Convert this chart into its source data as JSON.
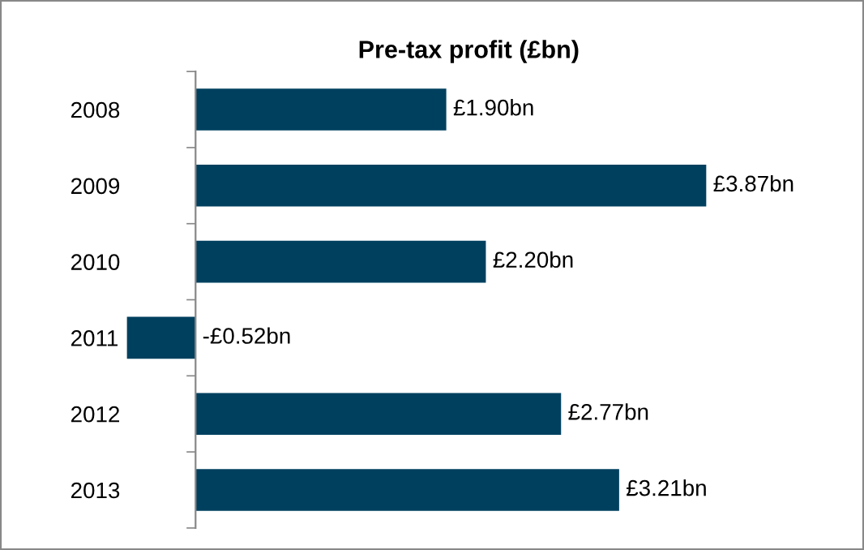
{
  "chart_data": {
    "type": "bar",
    "orientation": "horizontal",
    "title": "Pre-tax profit (£bn)",
    "categories": [
      "2008",
      "2009",
      "2010",
      "2011",
      "2012",
      "2013"
    ],
    "values": [
      1.9,
      3.87,
      2.2,
      -0.52,
      2.77,
      3.21
    ],
    "value_labels": [
      "£1.90bn",
      "£3.87bn",
      "£2.20bn",
      "-£0.52bn",
      "£2.77bn",
      "£3.21bn"
    ],
    "color": "#00405f",
    "tick_labels": "y",
    "grid": false,
    "legend": false
  }
}
